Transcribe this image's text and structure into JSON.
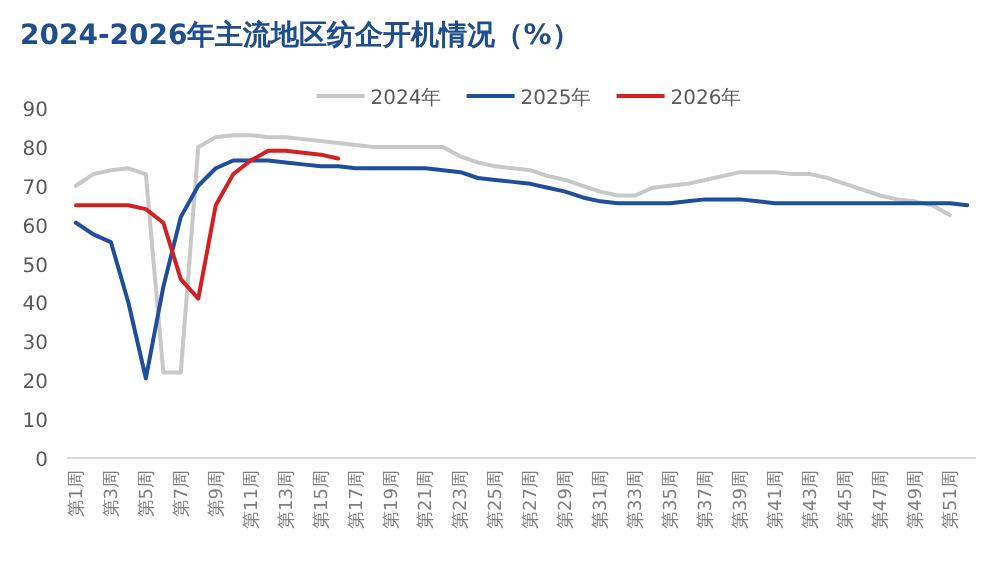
{
  "chart_data": {
    "type": "line",
    "title": "2024-2026年主流地区纺企开机情况（%）",
    "categories": [
      "第1周",
      null,
      "第3周",
      null,
      "第5周",
      null,
      "第7周",
      null,
      "第9周",
      null,
      "第11周",
      null,
      "第13周",
      null,
      "第15周",
      null,
      "第17周",
      null,
      "第19周",
      null,
      "第21周",
      null,
      "第23周",
      null,
      "第25周",
      null,
      "第27周",
      null,
      "第29周",
      null,
      "第31周",
      null,
      "第33周",
      null,
      "第35周",
      null,
      "第37周",
      null,
      "第39周",
      null,
      "第41周",
      null,
      "第43周",
      null,
      "第45周",
      null,
      "第47周",
      null,
      "第49周",
      null,
      "第51周",
      null
    ],
    "series": [
      {
        "name": "2024年",
        "color": "#c8c8c8",
        "values": [
          70,
          73,
          74,
          74.5,
          73,
          22,
          22,
          80,
          82.5,
          83,
          83,
          82.5,
          82.5,
          82,
          81.5,
          81,
          80.5,
          80,
          80,
          80,
          80,
          80,
          77.5,
          76,
          75,
          74.5,
          74,
          72.5,
          71.5,
          70,
          68.5,
          67.5,
          67.5,
          69.5,
          70,
          70.5,
          71.5,
          72.5,
          73.5,
          73.5,
          73.5,
          73,
          73,
          72,
          70.5,
          69,
          67.5,
          66.5,
          66,
          65,
          62.5,
          null
        ]
      },
      {
        "name": "2025年",
        "color": "#1f4e9c",
        "values": [
          60.5,
          57.5,
          55.5,
          40,
          20.5,
          44,
          62,
          70,
          74.5,
          76.5,
          76.5,
          76.5,
          76,
          75.5,
          75,
          75,
          74.5,
          74.5,
          74.5,
          74.5,
          74.5,
          74,
          73.5,
          72,
          71.5,
          71,
          70.5,
          69.5,
          68.5,
          67,
          66,
          65.5,
          65.5,
          65.5,
          65.5,
          66,
          66.5,
          66.5,
          66.5,
          66,
          65.5,
          65.5,
          65.5,
          65.5,
          65.5,
          65.5,
          65.5,
          65.5,
          65.5,
          65.5,
          65.5,
          65
        ]
      },
      {
        "name": "2026年",
        "color": "#d42020",
        "values": [
          65,
          65,
          65,
          65,
          64,
          60.5,
          46,
          41,
          65,
          73,
          76.5,
          79,
          79,
          78.5,
          78,
          77,
          null,
          null,
          null,
          null,
          null,
          null,
          null,
          null,
          null,
          null,
          null,
          null,
          null,
          null,
          null,
          null,
          null,
          null,
          null,
          null,
          null,
          null,
          null,
          null,
          null,
          null,
          null,
          null,
          null,
          null,
          null,
          null,
          null,
          null,
          null,
          null
        ]
      }
    ],
    "ylim": [
      0,
      90
    ],
    "yticks": [
      0,
      10,
      20,
      30,
      40,
      50,
      60,
      70,
      80,
      90
    ],
    "grid": false,
    "legend": "top",
    "marker": "none",
    "line_style": "solid"
  }
}
